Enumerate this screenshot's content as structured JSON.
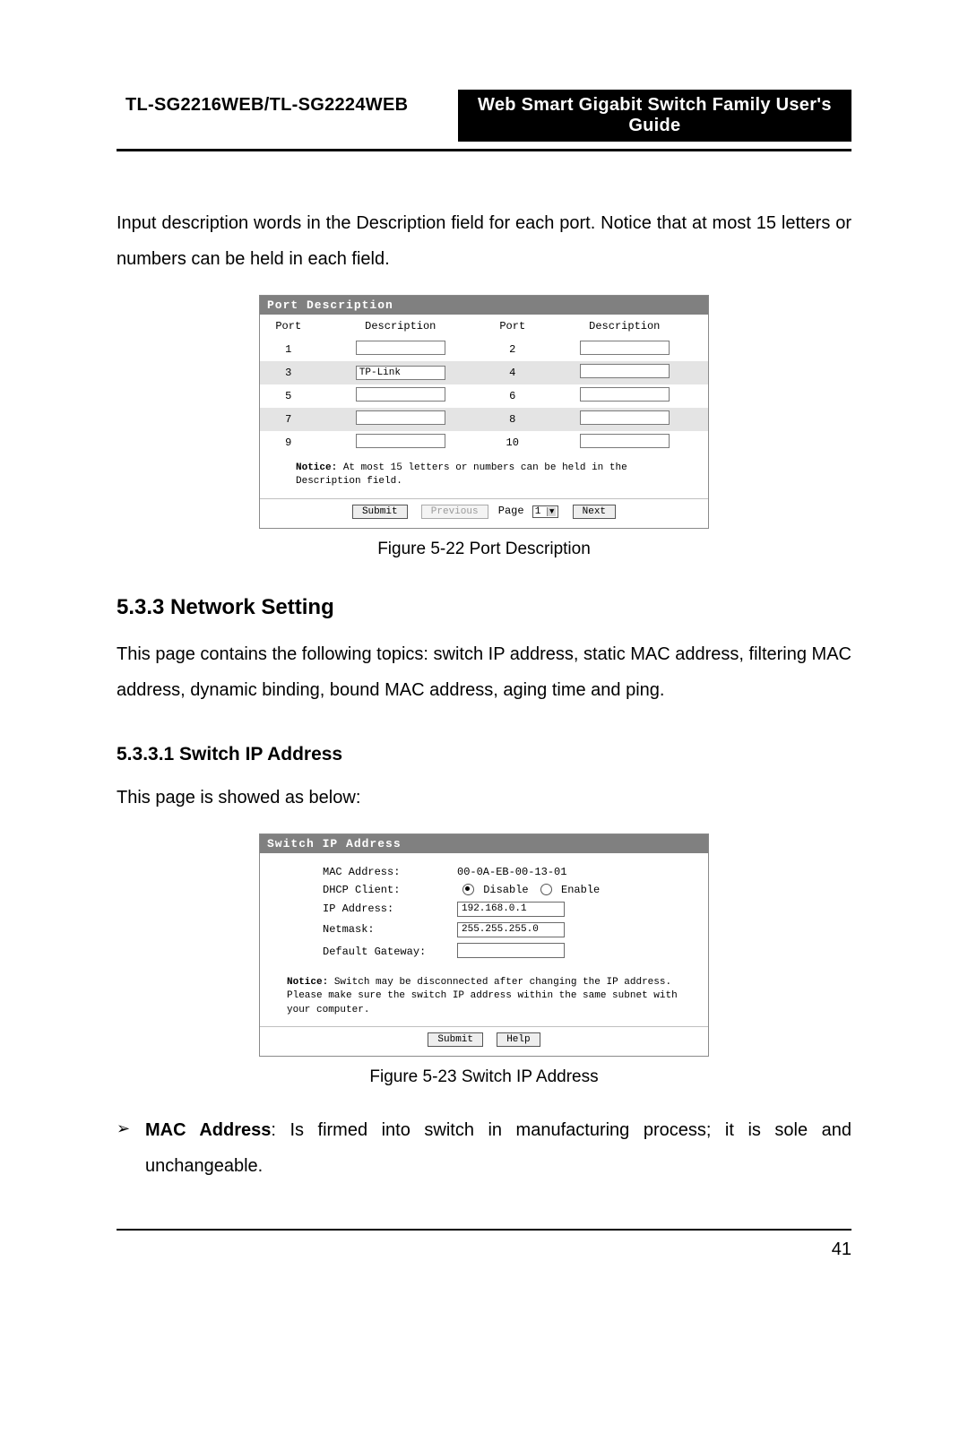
{
  "header": {
    "left": "TL-SG2216WEB/TL-SG2224WEB",
    "right": "Web Smart Gigabit Switch Family User's Guide"
  },
  "intro": "Input description words in the Description field for each port. Notice that at most 15 letters or numbers can be held in each field.",
  "panel1": {
    "title": "Port Description",
    "cols": {
      "port": "Port",
      "desc": "Description"
    },
    "rows": [
      {
        "a_port": "1",
        "a_val": "",
        "b_port": "2",
        "b_val": "",
        "alt": false
      },
      {
        "a_port": "3",
        "a_val": "TP-Link",
        "b_port": "4",
        "b_val": "",
        "alt": true
      },
      {
        "a_port": "5",
        "a_val": "",
        "b_port": "6",
        "b_val": "",
        "alt": false
      },
      {
        "a_port": "7",
        "a_val": "",
        "b_port": "8",
        "b_val": "",
        "alt": true
      },
      {
        "a_port": "9",
        "a_val": "",
        "b_port": "10",
        "b_val": "",
        "alt": false
      }
    ],
    "notice_label": "Notice:",
    "notice_text": "At most 15 letters or numbers can be held in the Description field.",
    "buttons": {
      "submit": "Submit",
      "previous": "Previous",
      "page_label": "Page",
      "page_value": "1",
      "next": "Next"
    }
  },
  "fig1": "Figure 5-22  Port Description",
  "h3": "5.3.3  Network Setting",
  "para_network": "This page contains the following topics: switch IP address, static MAC address, filtering MAC address, dynamic binding, bound MAC address, aging time and ping.",
  "h4": "5.3.3.1  Switch IP Address",
  "para_ip": "This page is showed as below:",
  "panel2": {
    "title": "Switch IP Address",
    "mac_label": "MAC Address:",
    "mac_value": "00-0A-EB-00-13-01",
    "dhcp_label": "DHCP Client:",
    "dhcp_disable": "Disable",
    "dhcp_enable": "Enable",
    "dhcp_selected": "disable",
    "ip_label": "IP Address:",
    "ip_value": "192.168.0.1",
    "mask_label": "Netmask:",
    "mask_value": "255.255.255.0",
    "gw_label": "Default Gateway:",
    "gw_value": "",
    "notice_label": "Notice:",
    "notice_text": "Switch may be disconnected after changing the IP address. Please make sure the switch IP address within the same subnet with your computer.",
    "buttons": {
      "submit": "Submit",
      "help": "Help"
    }
  },
  "fig2": "Figure 5-23  Switch IP Address",
  "bullet": {
    "label": "MAC Address",
    "text": ": Is firmed into switch in manufacturing process; it is sole and unchangeable."
  },
  "page_number": "41",
  "colors": {
    "panel_header_bg": "#808080",
    "panel_header_fg": "#ffffff",
    "alt_row_bg": "#e4e4e4",
    "border": "#8a8a8a",
    "button_bg": "#eeeeee"
  }
}
